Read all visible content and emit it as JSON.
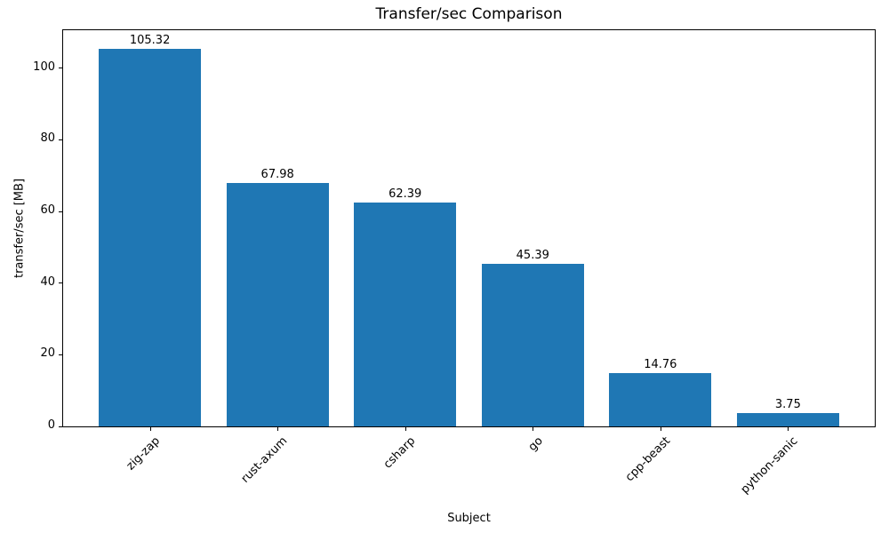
{
  "chart_data": {
    "type": "bar",
    "title": "Transfer/sec Comparison",
    "xlabel": "Subject",
    "ylabel": "transfer/sec [MB]",
    "categories": [
      "zig-zap",
      "rust-axum",
      "csharp",
      "go",
      "cpp-beast",
      "python-sanic"
    ],
    "values": [
      105.32,
      67.98,
      62.39,
      45.39,
      14.76,
      3.75
    ],
    "value_labels": [
      "105.32",
      "67.98",
      "62.39",
      "45.39",
      "14.76",
      "3.75"
    ],
    "bar_color": "#1f77b4",
    "ylim": [
      0,
      110.6
    ],
    "yticks": [
      0,
      20,
      40,
      60,
      80,
      100
    ],
    "grid": false,
    "legend": null,
    "tick_rotation_deg": 45
  }
}
